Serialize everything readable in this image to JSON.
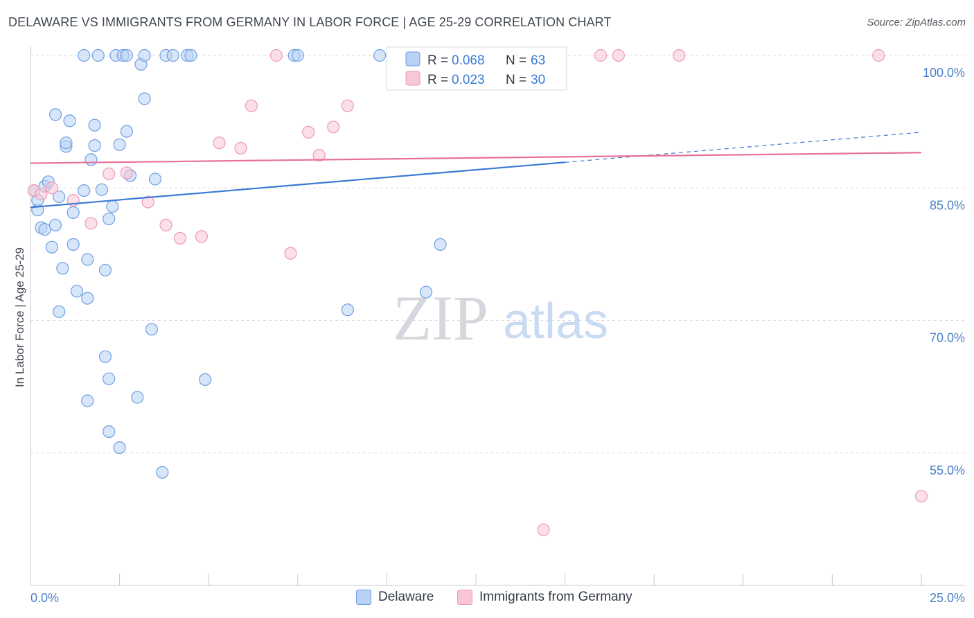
{
  "title": "DELAWARE VS IMMIGRANTS FROM GERMANY IN LABOR FORCE | AGE 25-29 CORRELATION CHART",
  "source": "Source: ZipAtlas.com",
  "watermark": {
    "zip": "ZIP",
    "atlas": "atlas"
  },
  "colors": {
    "blue": "#3a7bd5",
    "blue_fill": "#b8d1f5",
    "pink": "#e8709a",
    "pink_fill": "#f8c6d6",
    "axis_text": "#4a7fc9",
    "grid": "#d9dde3"
  },
  "legend_top": {
    "rows": [
      {
        "r_label": "R =",
        "r_value": "0.068",
        "n_label": "N =",
        "n_value": "63"
      },
      {
        "r_label": "R =",
        "r_value": "0.023",
        "n_label": "N =",
        "n_value": "30"
      }
    ]
  },
  "legend_bottom": {
    "items": [
      {
        "label": "Delaware"
      },
      {
        "label": "Immigrants from Germany"
      }
    ]
  },
  "chart_data": {
    "type": "scatter",
    "title": "DELAWARE VS IMMIGRANTS FROM GERMANY IN LABOR FORCE | AGE 25-29 CORRELATION CHART",
    "xlabel": "",
    "ylabel": "In Labor Force | Age 25-29",
    "xlim": [
      0,
      25
    ],
    "ylim": [
      40,
      102
    ],
    "x_tick_labels": [
      "0.0%",
      "25.0%"
    ],
    "y_ticks": [
      55,
      70,
      85,
      100
    ],
    "y_tick_labels": [
      "55.0%",
      "70.0%",
      "85.0%",
      "100.0%"
    ],
    "grid": true,
    "series": [
      {
        "name": "Delaware",
        "color": "#3a7bd5",
        "trend": {
          "x": [
            0,
            15
          ],
          "y": [
            82.8,
            87.9
          ],
          "dashed_to": {
            "x": 25,
            "y": 91.3
          }
        },
        "points": [
          [
            0.1,
            84.7
          ],
          [
            0.2,
            82.5
          ],
          [
            0.2,
            83.6
          ],
          [
            0.3,
            80.5
          ],
          [
            0.4,
            80.3
          ],
          [
            0.4,
            85.2
          ],
          [
            0.5,
            85.7
          ],
          [
            0.6,
            78.3
          ],
          [
            0.7,
            93.3
          ],
          [
            0.8,
            84.0
          ],
          [
            0.7,
            80.8
          ],
          [
            0.8,
            71.0
          ],
          [
            0.9,
            75.9
          ],
          [
            1.0,
            89.7
          ],
          [
            1.0,
            90.1
          ],
          [
            1.1,
            92.6
          ],
          [
            1.2,
            82.2
          ],
          [
            1.2,
            78.6
          ],
          [
            1.3,
            73.3
          ],
          [
            1.5,
            84.7
          ],
          [
            1.5,
            100.0
          ],
          [
            1.6,
            72.5
          ],
          [
            1.6,
            76.9
          ],
          [
            1.6,
            60.9
          ],
          [
            1.7,
            88.2
          ],
          [
            1.8,
            92.1
          ],
          [
            1.8,
            89.8
          ],
          [
            1.9,
            100.0
          ],
          [
            2.0,
            84.8
          ],
          [
            2.1,
            65.9
          ],
          [
            2.1,
            75.7
          ],
          [
            2.2,
            57.4
          ],
          [
            2.2,
            81.5
          ],
          [
            2.2,
            63.4
          ],
          [
            2.3,
            82.9
          ],
          [
            2.4,
            100.0
          ],
          [
            2.5,
            89.9
          ],
          [
            2.5,
            55.6
          ],
          [
            2.6,
            100.0
          ],
          [
            2.7,
            100.0
          ],
          [
            2.7,
            91.4
          ],
          [
            2.8,
            86.4
          ],
          [
            3.0,
            61.3
          ],
          [
            3.1,
            99.0
          ],
          [
            3.2,
            95.1
          ],
          [
            3.2,
            100.0
          ],
          [
            3.4,
            69.0
          ],
          [
            3.5,
            86.0
          ],
          [
            3.7,
            52.8
          ],
          [
            3.8,
            100.0
          ],
          [
            4.0,
            100.0
          ],
          [
            4.4,
            100.0
          ],
          [
            4.5,
            100.0
          ],
          [
            4.9,
            63.3
          ],
          [
            7.4,
            100.0
          ],
          [
            7.5,
            100.0
          ],
          [
            8.9,
            71.2
          ],
          [
            9.8,
            100.0
          ],
          [
            10.2,
            100.0
          ],
          [
            11.1,
            100.0
          ],
          [
            11.1,
            73.2
          ],
          [
            11.5,
            78.6
          ],
          [
            12.0,
            100.0
          ]
        ]
      },
      {
        "name": "Immigrants from Germany",
        "color": "#e8709a",
        "trend": {
          "x": [
            0,
            25
          ],
          "y": [
            87.8,
            89.0
          ]
        },
        "points": [
          [
            0.1,
            84.7
          ],
          [
            0.3,
            84.3
          ],
          [
            0.6,
            85.0
          ],
          [
            1.2,
            83.6
          ],
          [
            1.7,
            81.0
          ],
          [
            2.2,
            86.6
          ],
          [
            2.7,
            86.7
          ],
          [
            3.3,
            83.4
          ],
          [
            3.8,
            80.8
          ],
          [
            4.2,
            79.3
          ],
          [
            4.8,
            79.5
          ],
          [
            5.3,
            90.1
          ],
          [
            5.9,
            89.5
          ],
          [
            6.2,
            94.3
          ],
          [
            6.9,
            100.0
          ],
          [
            7.3,
            77.6
          ],
          [
            7.8,
            91.3
          ],
          [
            8.1,
            88.7
          ],
          [
            8.5,
            91.9
          ],
          [
            8.9,
            94.3
          ],
          [
            10.6,
            100.0
          ],
          [
            11.9,
            100.0
          ],
          [
            12.9,
            100.0
          ],
          [
            14.2,
            100.0
          ],
          [
            14.4,
            46.3
          ],
          [
            16.0,
            100.0
          ],
          [
            16.5,
            100.0
          ],
          [
            18.2,
            100.0
          ],
          [
            23.8,
            100.0
          ],
          [
            25.0,
            50.1
          ]
        ]
      }
    ]
  }
}
